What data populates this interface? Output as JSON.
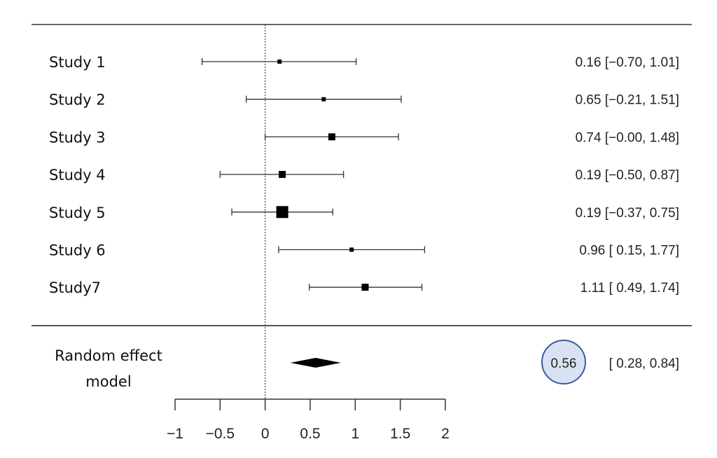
{
  "chart_data": {
    "type": "forest",
    "studies": [
      {
        "label": "Study 1",
        "estimate": 0.16,
        "lower": -0.7,
        "upper": 1.01,
        "text": "0.16 [−0.70, 1.01]",
        "weight": "small"
      },
      {
        "label": "Study 2",
        "estimate": 0.65,
        "lower": -0.21,
        "upper": 1.51,
        "text": "0.65 [−0.21, 1.51]",
        "weight": "small"
      },
      {
        "label": "Study 3",
        "estimate": 0.74,
        "lower": -0.0,
        "upper": 1.48,
        "text": "0.74 [−0.00, 1.48]",
        "weight": "medium"
      },
      {
        "label": "Study 4",
        "estimate": 0.19,
        "lower": -0.5,
        "upper": 0.87,
        "text": "0.19 [−0.50, 0.87]",
        "weight": "medium"
      },
      {
        "label": "Study 5",
        "estimate": 0.19,
        "lower": -0.37,
        "upper": 0.75,
        "text": "0.19 [−0.37, 0.75]",
        "weight": "large"
      },
      {
        "label": "Study 6",
        "estimate": 0.96,
        "lower": 0.15,
        "upper": 1.77,
        "text": "0.96 [ 0.15, 1.77]",
        "weight": "small"
      },
      {
        "label": "Study7",
        "estimate": 1.11,
        "lower": 0.49,
        "upper": 1.74,
        "text": "1.11 [ 0.49, 1.74]",
        "weight": "medium"
      }
    ],
    "summary": {
      "label_line1": "Random effect",
      "label_line2": "model",
      "estimate": 0.56,
      "lower": 0.28,
      "upper": 0.84,
      "estimate_text": "0.56",
      "ci_text": "[ 0.28, 0.84]",
      "highlight_fill": "#d9e2f3",
      "highlight_stroke": "#3a5ba0"
    },
    "xlim": [
      -1,
      2
    ],
    "xticks": [
      -1,
      -0.5,
      0,
      0.5,
      1,
      1.5,
      2
    ],
    "xtick_labels": [
      "−1",
      "−0.5",
      "0",
      "0.5",
      "1",
      "1.5",
      "2"
    ],
    "reference_line": 0
  }
}
